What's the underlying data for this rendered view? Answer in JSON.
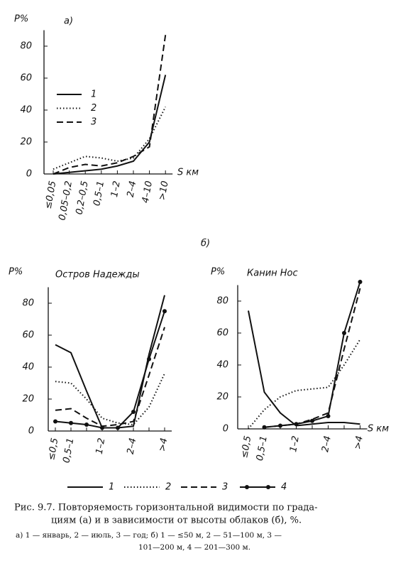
{
  "chart_data": [
    {
      "type": "line",
      "title": "а)",
      "y_label": "P%",
      "x_label": "S км",
      "categories": [
        "≤0,05",
        "0,05–0,2",
        "0,2–0,5",
        "0,5–1",
        "1–2",
        "2–4",
        "4–10",
        ">10"
      ],
      "ylim": [
        0,
        90
      ],
      "yticks": [
        0,
        20,
        40,
        60,
        80
      ],
      "series": [
        {
          "name": "1",
          "color": "#111",
          "dash": "solid",
          "values": [
            0,
            1,
            2,
            3,
            5,
            8,
            20,
            62
          ]
        },
        {
          "name": "2",
          "color": "#111",
          "dash": "dotted",
          "values": [
            3,
            7,
            11,
            10,
            8,
            10,
            22,
            42
          ]
        },
        {
          "name": "3",
          "color": "#111",
          "dash": "dashed",
          "values": [
            0,
            4,
            6,
            5,
            7,
            11,
            17,
            87
          ]
        }
      ]
    },
    {
      "type": "line",
      "title": "Остров Надежды",
      "y_label": "P%",
      "categories": [
        "≤0,5",
        "0,5–1",
        null,
        "1–2",
        null,
        "2–4",
        null,
        ">4"
      ],
      "ylim": [
        0,
        90
      ],
      "yticks": [
        0,
        20,
        40,
        60,
        80
      ],
      "series": [
        {
          "color": "#111",
          "dash": "solid",
          "values": [
            54,
            49,
            25,
            2,
            2,
            3,
            48,
            85
          ]
        },
        {
          "color": "#111",
          "dash": "dotted",
          "values": [
            31,
            30,
            20,
            8,
            5,
            4,
            15,
            36
          ]
        },
        {
          "color": "#111",
          "dash": "dashed",
          "values": [
            13,
            14,
            8,
            3,
            4,
            6,
            35,
            65
          ]
        },
        {
          "color": "#111",
          "dash": "solid",
          "marker": "circle",
          "values": [
            6,
            5,
            4,
            2,
            2,
            12,
            45,
            75
          ]
        }
      ]
    },
    {
      "type": "line",
      "title": "Канин Нос",
      "y_label": "P%",
      "x_label": "S км",
      "categories": [
        "≤0,5",
        "0,5–1",
        null,
        "1–2",
        null,
        "2–4",
        null,
        ">4"
      ],
      "ylim": [
        0,
        90
      ],
      "yticks": [
        0,
        20,
        40,
        60,
        80
      ],
      "series": [
        {
          "color": "#111",
          "dash": "solid",
          "values": [
            74,
            23,
            10,
            2,
            3,
            4,
            4,
            3
          ]
        },
        {
          "color": "#111",
          "dash": "dotted",
          "values": [
            0,
            12,
            20,
            24,
            25,
            26,
            40,
            56
          ]
        },
        {
          "color": "#111",
          "dash": "dashed",
          "values": [
            null,
            1,
            2,
            3,
            6,
            10,
            50,
            88
          ]
        },
        {
          "color": "#111",
          "dash": "solid",
          "marker": "circle",
          "values": [
            null,
            1,
            2,
            3,
            5,
            8,
            60,
            92
          ]
        }
      ]
    }
  ],
  "figure": {
    "panel_b": "б)",
    "legend": [
      {
        "label": "1",
        "dash": "solid"
      },
      {
        "label": "2",
        "dash": "dotted"
      },
      {
        "label": "3",
        "dash": "dashed"
      },
      {
        "label": "4",
        "dash": "solid",
        "marker": "circle"
      }
    ],
    "caption": [
      "Рис. 9.7. Повторяемость горизонтальной видимости по града-",
      "циям (а) и в зависимости от высоты облаков (б), %."
    ],
    "notes": [
      "а) 1 — январь, 2 — июль, 3 — год; б) 1 — ≤50 м, 2 — 51—100 м, 3 —",
      "101—200 м, 4 — 201—300 м."
    ]
  }
}
